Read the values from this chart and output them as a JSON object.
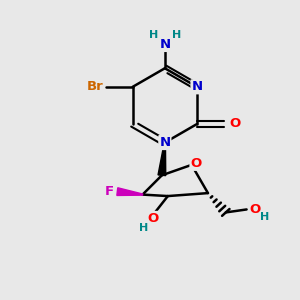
{
  "bg_color": "#e8e8e8",
  "atom_colors": {
    "C": "#000000",
    "N": "#0000cc",
    "O": "#ff0000",
    "Br": "#cc6600",
    "F": "#cc00bb",
    "H": "#008888"
  },
  "bond_color": "#000000",
  "figsize": [
    3.0,
    3.0
  ],
  "dpi": 100
}
